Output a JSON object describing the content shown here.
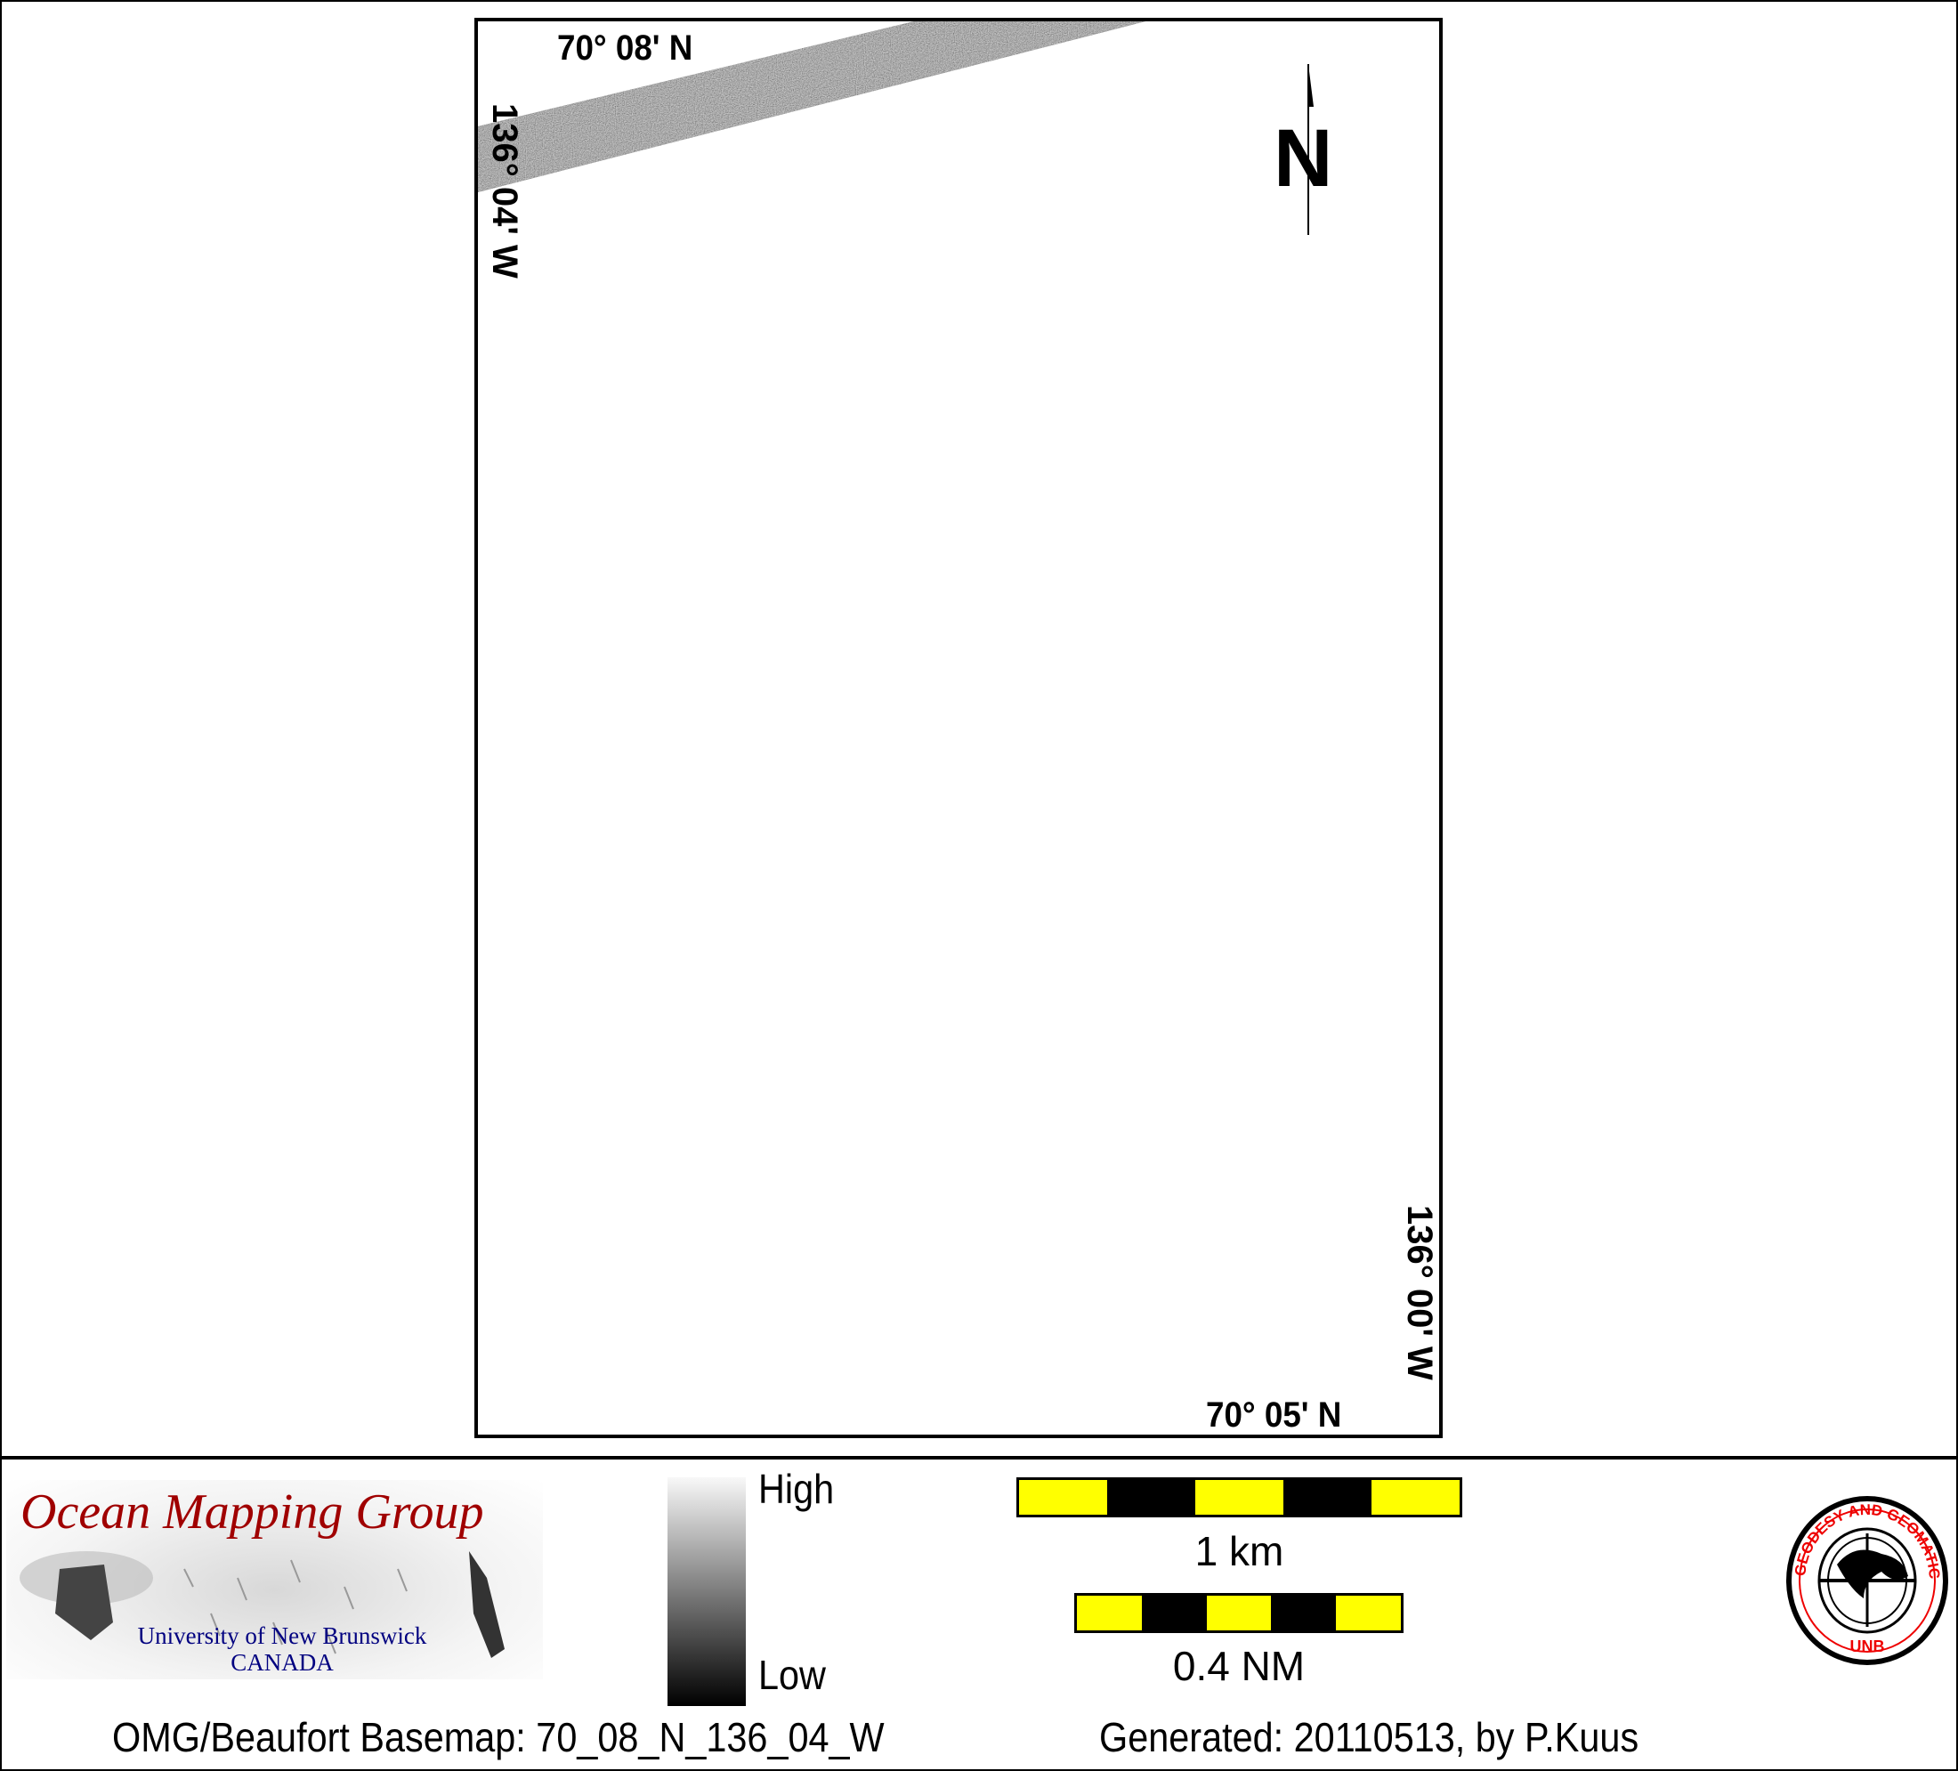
{
  "map": {
    "top_left_lat": "70° 08' N",
    "left_lon": "136° 04' W",
    "right_lon": "136° 00' W",
    "bottom_right_lat": "70° 05' N",
    "north_label": "N"
  },
  "legend": {
    "high_label": "High",
    "low_label": "Low",
    "scale_km_label": "1 km",
    "scale_nm_label": "0.4 NM",
    "scale_colors": [
      "#ffff00",
      "#000000"
    ]
  },
  "logos": {
    "omg_title": "Ocean Mapping Group",
    "omg_university": "University of New Brunswick",
    "omg_country": "CANADA",
    "unb_ring_text": "GEODESY AND GEOMATICS ENGINEERING",
    "unb_bottom": "UNB"
  },
  "footer": {
    "basemap": "OMG/Beaufort Basemap: 70_08_N_136_04_W",
    "generated": "Generated: 20110513, by P.Kuus"
  }
}
